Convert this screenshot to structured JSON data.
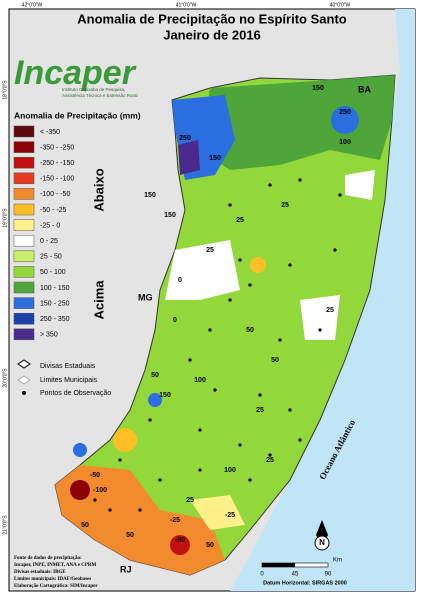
{
  "title": [
    "Anomalia de Precipitação no Espírito Santo",
    "Janeiro de 2016"
  ],
  "logo": {
    "name": "Incaper",
    "subtitle": [
      "Instituto Capixaba de Pesquisa,",
      "Assistência Técnica e Extensão Rural"
    ]
  },
  "coordinates": {
    "top": [
      "42°0'0\"W",
      "41°0'0\"W",
      "40°0'0\"W"
    ],
    "left": [
      "18°0'0\"S",
      "19°0'0\"S",
      "20°0'0\"S",
      "21°0'0\"S"
    ]
  },
  "legend": {
    "title": "Anomalia de Precipitação (mm)",
    "below": "Abaixo",
    "above": "Acima",
    "items": [
      {
        "label": "< -350",
        "color": "#5a0a0a"
      },
      {
        "label": "-350 - -250",
        "color": "#8b0000"
      },
      {
        "label": "-250 - -150",
        "color": "#c01010"
      },
      {
        "label": "-150 - -100",
        "color": "#e33a20"
      },
      {
        "label": "-100 - -50",
        "color": "#f28a2e"
      },
      {
        "label": "-50 - -25",
        "color": "#ffbf26"
      },
      {
        "label": "-25 - 0",
        "color": "#fff08a"
      },
      {
        "label": "0 - 25",
        "color": "#ffffff"
      },
      {
        "label": "25 - 50",
        "color": "#c8f06a"
      },
      {
        "label": "50 - 100",
        "color": "#93d83a"
      },
      {
        "label": "100 - 150",
        "color": "#4ea63a"
      },
      {
        "label": "150 - 250",
        "color": "#2a6ee0"
      },
      {
        "label": "250 - 350",
        "color": "#1c3fa8"
      },
      {
        "label": "> 350",
        "color": "#4a2a8c"
      }
    ],
    "extras": [
      "Divisas Estaduais",
      "Limites Municipais",
      "Pontos de Observação"
    ]
  },
  "map_labels": {
    "states": [
      "BA",
      "MG",
      "RJ"
    ],
    "ocean": "Oceano Atlântico",
    "contours": [
      "150",
      "250",
      "250",
      "150",
      "100",
      "150",
      "150",
      "25",
      "25",
      "0",
      "25",
      "0",
      "50",
      "50",
      "25",
      "100",
      "50",
      "25",
      "150",
      "100",
      "25",
      "-50",
      "-100",
      "50",
      "50",
      "25",
      "-25",
      "-25",
      "-50",
      "50"
    ]
  },
  "scale": {
    "ticks": [
      "0",
      "45",
      "90"
    ],
    "unit": "Km",
    "north": "N",
    "datum": "Datum Horizontal: SIRGAS 2000"
  },
  "sources": [
    "Fonte de dados de precipitação:",
    "Incaper, INPE, INMET, ANA e CPRM",
    "Divisas estaduais: IBGE",
    "Limites municipais: IDAF/Geobases",
    "Elaboração Cartográfica: SIM/Incaper"
  ]
}
